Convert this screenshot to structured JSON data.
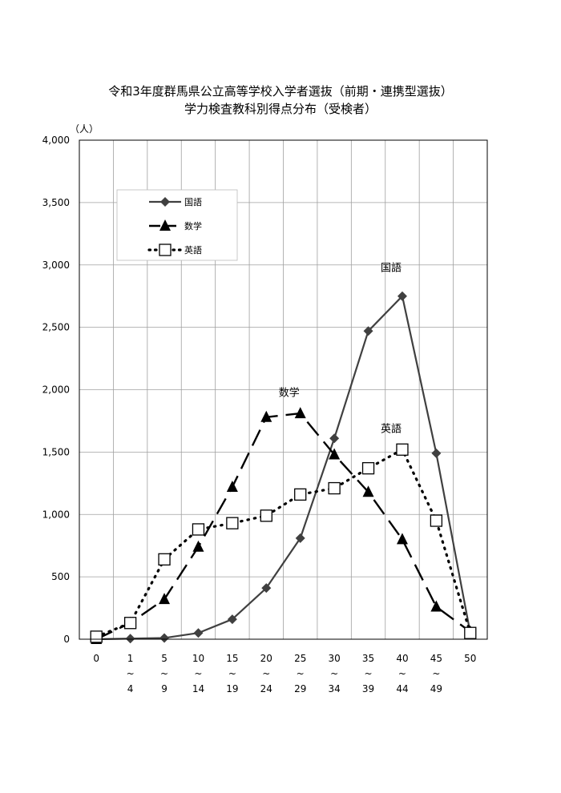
{
  "chart_data": {
    "type": "line",
    "title": "令和3年度群馬県公立高等学校入学者選抜（前期・連携型選抜）",
    "subtitle": "学力検査教科別得点分布（受検者）",
    "y_unit": "（人）",
    "ylim": [
      0,
      4000
    ],
    "y_ticks": [
      "0",
      "500",
      "1,000",
      "1,500",
      "2,000",
      "2,500",
      "3,000",
      "3,500",
      "4,000"
    ],
    "y_tick_values": [
      0,
      500,
      1000,
      1500,
      2000,
      2500,
      3000,
      3500,
      4000
    ],
    "categories": [
      {
        "top": "0",
        "sep": "",
        "bottom": ""
      },
      {
        "top": "1",
        "sep": "~",
        "bottom": "4"
      },
      {
        "top": "5",
        "sep": "~",
        "bottom": "9"
      },
      {
        "top": "10",
        "sep": "~",
        "bottom": "14"
      },
      {
        "top": "15",
        "sep": "~",
        "bottom": "19"
      },
      {
        "top": "20",
        "sep": "~",
        "bottom": "24"
      },
      {
        "top": "25",
        "sep": "~",
        "bottom": "29"
      },
      {
        "top": "30",
        "sep": "~",
        "bottom": "34"
      },
      {
        "top": "35",
        "sep": "~",
        "bottom": "39"
      },
      {
        "top": "40",
        "sep": "~",
        "bottom": "44"
      },
      {
        "top": "45",
        "sep": "~",
        "bottom": "49"
      },
      {
        "top": "50",
        "sep": "",
        "bottom": ""
      }
    ],
    "series": [
      {
        "name": "国語",
        "marker": "diamond",
        "line": "solid",
        "color": "#404040",
        "values": [
          0,
          5,
          10,
          50,
          160,
          410,
          810,
          1610,
          2470,
          2750,
          1490,
          50
        ]
      },
      {
        "name": "数学",
        "marker": "triangle",
        "line": "dash",
        "color": "#000000",
        "values": [
          0,
          130,
          320,
          740,
          1220,
          1780,
          1810,
          1480,
          1180,
          800,
          260,
          60
        ]
      },
      {
        "name": "英語",
        "marker": "square",
        "line": "dot",
        "color": "#000000",
        "values": [
          20,
          130,
          640,
          880,
          930,
          990,
          1160,
          1210,
          1370,
          1520,
          950,
          50
        ]
      }
    ],
    "legend": {
      "placement": "top-left",
      "entries": [
        "国語",
        "数学",
        "英語"
      ]
    },
    "series_labels": [
      {
        "text": "国語",
        "near_category": 9,
        "near_value": 2950
      },
      {
        "text": "数学",
        "near_category": 6,
        "near_value": 1950
      },
      {
        "text": "英語",
        "near_category": 9,
        "near_value": 1660
      }
    ],
    "grid": true
  }
}
